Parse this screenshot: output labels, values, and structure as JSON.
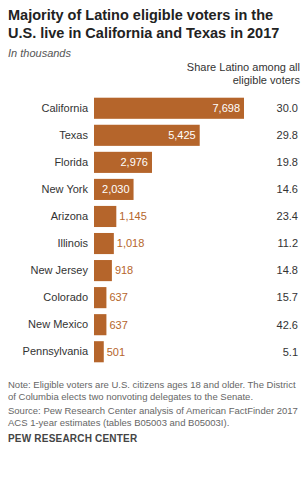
{
  "chart_data": {
    "type": "bar",
    "orientation": "horizontal",
    "title": "Majority of Latino eligible voters in the U.S. live in California and Texas in 2017",
    "subtitle": "In thousands",
    "categories": [
      "California",
      "Texas",
      "Florida",
      "New York",
      "Arizona",
      "Illinois",
      "New Jersey",
      "Colorado",
      "New Mexico",
      "Pennsylvania"
    ],
    "values": [
      7698,
      5425,
      2976,
      2030,
      1145,
      1018,
      918,
      637,
      637,
      501
    ],
    "value_labels": [
      "7,698",
      "5,425",
      "2,976",
      "2,030",
      "1,145",
      "1,018",
      "918",
      "637",
      "637",
      "501"
    ],
    "data_labels": true,
    "color": "#b5652b",
    "xlim": [
      0,
      7698
    ],
    "tick_labels": "y",
    "share_header": "Share Latino among all eligible voters",
    "share": [
      30.0,
      29.8,
      19.8,
      14.6,
      23.4,
      11.2,
      14.8,
      15.7,
      42.6,
      5.1
    ],
    "share_labels": [
      "30.0",
      "29.8",
      "19.8",
      "14.6",
      "23.4",
      "11.2",
      "14.8",
      "15.7",
      "42.6",
      "5.1"
    ],
    "note": "Note: Eligible voters are U.S. citizens ages 18 and older. The District of Columbia elects two nonvoting delegates to the Senate.",
    "source": "Source: Pew Research Center analysis of American FactFinder 2017 ACS 1-year estimates (tables B05003 and B05003I).",
    "credit": "PEW RESEARCH CENTER"
  }
}
